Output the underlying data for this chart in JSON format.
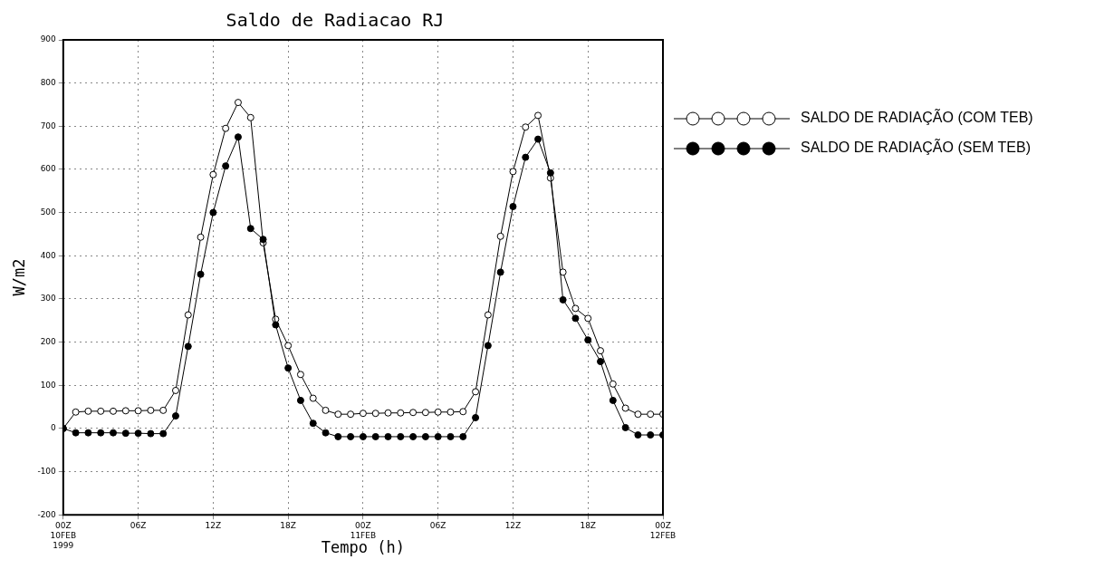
{
  "chart_data": {
    "type": "line",
    "title": "Saldo de Radiacao RJ",
    "xlabel": "Tempo (h)",
    "ylabel": "W/m2",
    "x": [
      "1999-02-10T00:00",
      "1999-02-10T01:00",
      "1999-02-10T02:00",
      "1999-02-10T03:00",
      "1999-02-10T04:00",
      "1999-02-10T05:00",
      "1999-02-10T06:00",
      "1999-02-10T07:00",
      "1999-02-10T08:00",
      "1999-02-10T09:00",
      "1999-02-10T10:00",
      "1999-02-10T11:00",
      "1999-02-10T12:00",
      "1999-02-10T13:00",
      "1999-02-10T14:00",
      "1999-02-10T15:00",
      "1999-02-10T16:00",
      "1999-02-10T17:00",
      "1999-02-10T18:00",
      "1999-02-10T19:00",
      "1999-02-10T20:00",
      "1999-02-10T21:00",
      "1999-02-10T22:00",
      "1999-02-10T23:00",
      "1999-02-11T00:00",
      "1999-02-11T01:00",
      "1999-02-11T02:00",
      "1999-02-11T03:00",
      "1999-02-11T04:00",
      "1999-02-11T05:00",
      "1999-02-11T06:00",
      "1999-02-11T07:00",
      "1999-02-11T08:00",
      "1999-02-11T09:00",
      "1999-02-11T10:00",
      "1999-02-11T11:00",
      "1999-02-11T12:00",
      "1999-02-11T13:00",
      "1999-02-11T14:00",
      "1999-02-11T15:00",
      "1999-02-11T16:00",
      "1999-02-11T17:00",
      "1999-02-11T18:00",
      "1999-02-11T19:00",
      "1999-02-11T20:00",
      "1999-02-11T21:00",
      "1999-02-11T22:00",
      "1999-02-11T23:00",
      "1999-02-12T00:00"
    ],
    "series": [
      {
        "name": "SALDO DE RADIAÇÃO (COM TEB)",
        "color": "#ffffff",
        "values": [
          0,
          38,
          40,
          40,
          40,
          41,
          41,
          42,
          42,
          88,
          263,
          443,
          588,
          695,
          755,
          720,
          430,
          253,
          192,
          125,
          70,
          42,
          33,
          33,
          35,
          35,
          36,
          36,
          37,
          37,
          38,
          38,
          39,
          85,
          263,
          445,
          595,
          698,
          725,
          580,
          362,
          278,
          255,
          180,
          103,
          47,
          33,
          33,
          33
        ]
      },
      {
        "name": "SALDO DE RADIAÇÃO (SEM TEB)",
        "color": "#000000",
        "values": [
          0,
          -10,
          -10,
          -10,
          -10,
          -11,
          -11,
          -12,
          -12,
          29,
          190,
          357,
          500,
          608,
          675,
          463,
          438,
          240,
          140,
          65,
          12,
          -10,
          -19,
          -19,
          -19,
          -19,
          -19,
          -19,
          -19,
          -19,
          -19,
          -19,
          -19,
          25,
          192,
          362,
          514,
          628,
          670,
          592,
          298,
          255,
          205,
          155,
          65,
          2,
          -15,
          -15,
          -15
        ]
      }
    ],
    "xlim": [
      "1999-02-10T00:00",
      "1999-02-12T00:00"
    ],
    "xticks": [
      {
        "value": "1999-02-10T00:00",
        "label": "00Z\n10FEB\n1999"
      },
      {
        "value": "1999-02-10T06:00",
        "label": "06Z"
      },
      {
        "value": "1999-02-10T12:00",
        "label": "12Z"
      },
      {
        "value": "1999-02-10T18:00",
        "label": "18Z"
      },
      {
        "value": "1999-02-11T00:00",
        "label": "00Z\n11FEB"
      },
      {
        "value": "1999-02-11T06:00",
        "label": "06Z"
      },
      {
        "value": "1999-02-11T12:00",
        "label": "12Z"
      },
      {
        "value": "1999-02-11T18:00",
        "label": "18Z"
      },
      {
        "value": "1999-02-12T00:00",
        "label": "00Z\n12FEB"
      }
    ],
    "ylim": [
      -200,
      900
    ],
    "yticks": [
      -200,
      -100,
      0,
      100,
      200,
      300,
      400,
      500,
      600,
      700,
      800,
      900
    ],
    "grid": true,
    "legend": "right",
    "marker": "circle",
    "line_style": "solid"
  }
}
